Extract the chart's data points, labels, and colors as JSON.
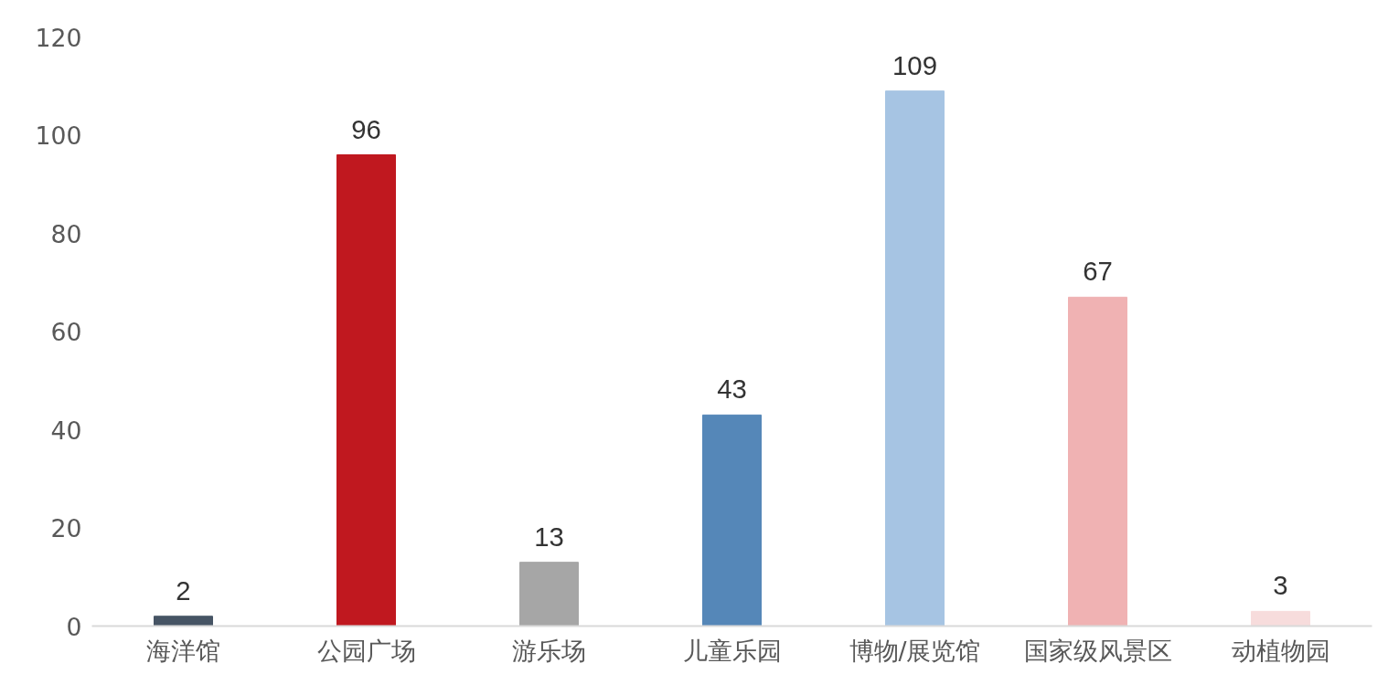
{
  "chart_data": {
    "type": "bar",
    "categories": [
      "海洋馆",
      "公园广场",
      "游乐场",
      "儿童乐园",
      "博物/展览馆",
      "国家级风景区",
      "动植物园"
    ],
    "values": [
      2,
      96,
      13,
      43,
      109,
      67,
      3
    ],
    "colors": [
      "#465464",
      "#c0181f",
      "#a6a6a6",
      "#5587b8",
      "#a6c4e3",
      "#f0b2b3",
      "#f7dcdc"
    ],
    "ylim": [
      0,
      120
    ],
    "yticks": [
      0,
      20,
      40,
      60,
      80,
      100,
      120
    ],
    "data_labels": true
  }
}
